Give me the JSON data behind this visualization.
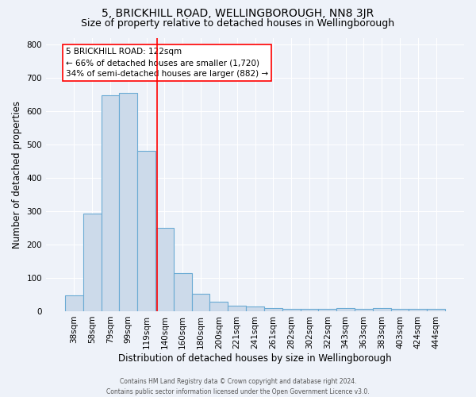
{
  "title": "5, BRICKHILL ROAD, WELLINGBOROUGH, NN8 3JR",
  "subtitle": "Size of property relative to detached houses in Wellingborough",
  "xlabel": "Distribution of detached houses by size in Wellingborough",
  "ylabel": "Number of detached properties",
  "categories": [
    "38sqm",
    "58sqm",
    "79sqm",
    "99sqm",
    "119sqm",
    "140sqm",
    "160sqm",
    "180sqm",
    "200sqm",
    "221sqm",
    "241sqm",
    "261sqm",
    "282sqm",
    "302sqm",
    "322sqm",
    "343sqm",
    "363sqm",
    "383sqm",
    "403sqm",
    "424sqm",
    "444sqm"
  ],
  "values": [
    47,
    293,
    648,
    655,
    480,
    250,
    113,
    52,
    29,
    16,
    15,
    10,
    7,
    7,
    7,
    9,
    7,
    9,
    7,
    7,
    7
  ],
  "bar_color": "#ccdaea",
  "bar_edge_color": "#6aaad4",
  "bar_edge_width": 0.8,
  "annotation_line1": "5 BRICKHILL ROAD: 122sqm",
  "annotation_line2": "← 66% of detached houses are smaller (1,720)",
  "annotation_line3": "34% of semi-detached houses are larger (882) →",
  "ylim": [
    0,
    820
  ],
  "background_color": "#eef2f9",
  "grid_color": "#ffffff",
  "footer_line1": "Contains HM Land Registry data © Crown copyright and database right 2024.",
  "footer_line2": "Contains public sector information licensed under the Open Government Licence v3.0.",
  "title_fontsize": 10,
  "subtitle_fontsize": 9,
  "axis_label_fontsize": 8.5,
  "tick_fontsize": 7.5,
  "annotation_fontsize": 7.5
}
